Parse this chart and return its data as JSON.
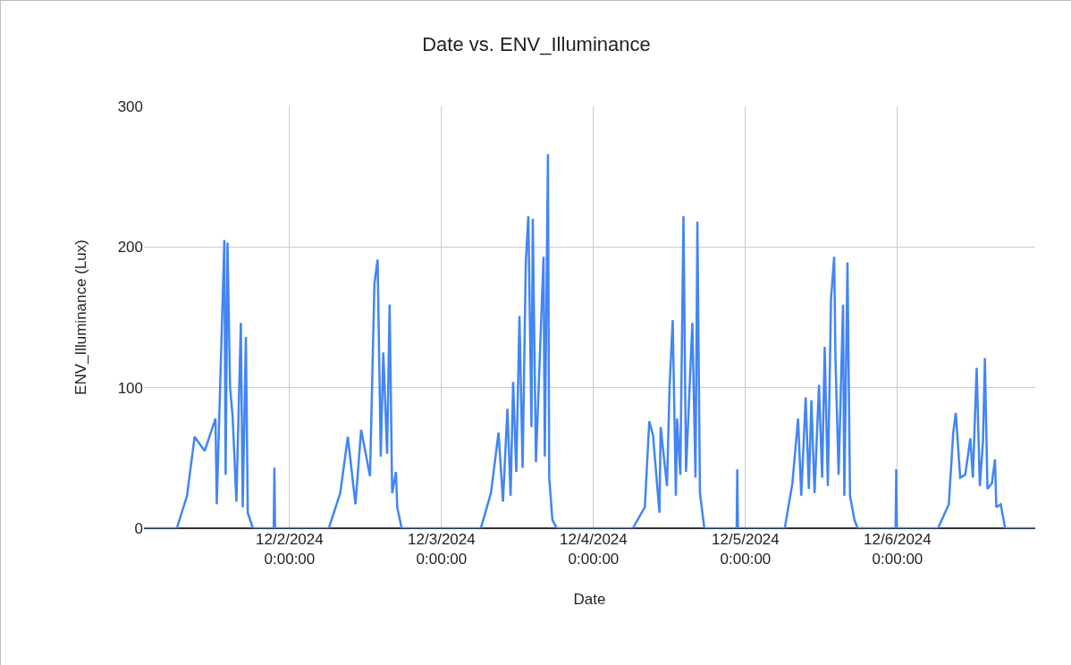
{
  "chart_data": {
    "type": "line",
    "title": "Date vs. ENV_Illuminance",
    "xlabel": "Date",
    "ylabel": "ENV_Illuminance (Lux)",
    "x": [
      "2024-12-01T01:00",
      "2024-12-01T06:12",
      "2024-12-01T07:48",
      "2024-12-01T09:00",
      "2024-12-01T10:36",
      "2024-12-01T12:18",
      "2024-12-01T12:30",
      "2024-12-01T13:42",
      "2024-12-01T13:54",
      "2024-12-01T14:12",
      "2024-12-01T14:36",
      "2024-12-01T15:00",
      "2024-12-01T15:36",
      "2024-12-01T16:18",
      "2024-12-01T16:36",
      "2024-12-01T17:06",
      "2024-12-01T17:24",
      "2024-12-01T18:12",
      "2024-12-01T21:30",
      "2024-12-01T21:36",
      "2024-12-01T21:42",
      "2024-12-02T06:12",
      "2024-12-02T08:00",
      "2024-12-02T09:12",
      "2024-12-02T10:24",
      "2024-12-02T11:18",
      "2024-12-02T12:42",
      "2024-12-02T13:24",
      "2024-12-02T13:54",
      "2024-12-02T14:24",
      "2024-12-02T14:48",
      "2024-12-02T15:24",
      "2024-12-02T15:48",
      "2024-12-02T16:12",
      "2024-12-02T16:48",
      "2024-12-02T17:00",
      "2024-12-02T17:42",
      "2024-12-03T06:12",
      "2024-12-03T07:48",
      "2024-12-03T09:00",
      "2024-12-03T09:42",
      "2024-12-03T10:24",
      "2024-12-03T10:54",
      "2024-12-03T11:18",
      "2024-12-03T11:48",
      "2024-12-03T12:18",
      "2024-12-03T12:48",
      "2024-12-03T13:18",
      "2024-12-03T13:42",
      "2024-12-03T14:12",
      "2024-12-03T14:24",
      "2024-12-03T14:54",
      "2024-12-03T16:06",
      "2024-12-03T16:18",
      "2024-12-03T16:48",
      "2024-12-03T17:00",
      "2024-12-03T17:30",
      "2024-12-03T18:12",
      "2024-12-04T06:12",
      "2024-12-04T08:06",
      "2024-12-04T08:48",
      "2024-12-04T09:24",
      "2024-12-04T10:24",
      "2024-12-04T10:36",
      "2024-12-04T11:36",
      "2024-12-04T12:00",
      "2024-12-04T12:30",
      "2024-12-04T13:00",
      "2024-12-04T13:12",
      "2024-12-04T13:42",
      "2024-12-04T14:12",
      "2024-12-04T14:36",
      "2024-12-04T15:36",
      "2024-12-04T16:06",
      "2024-12-04T16:24",
      "2024-12-04T16:48",
      "2024-12-04T17:30",
      "2024-12-04T22:36",
      "2024-12-04T22:42",
      "2024-12-04T22:48",
      "2024-12-05T06:12",
      "2024-12-05T07:24",
      "2024-12-05T08:18",
      "2024-12-05T08:48",
      "2024-12-05T09:30",
      "2024-12-05T10:00",
      "2024-12-05T10:24",
      "2024-12-05T10:54",
      "2024-12-05T11:36",
      "2024-12-05T12:06",
      "2024-12-05T12:30",
      "2024-12-05T13:00",
      "2024-12-05T13:30",
      "2024-12-05T14:00",
      "2024-12-05T14:12",
      "2024-12-05T14:42",
      "2024-12-05T15:24",
      "2024-12-05T15:36",
      "2024-12-05T16:06",
      "2024-12-05T16:30",
      "2024-12-05T17:12",
      "2024-12-05T17:42",
      "2024-12-05T23:42",
      "2024-12-05T23:48",
      "2024-12-05T23:54",
      "2024-12-06T06:24",
      "2024-12-06T08:06",
      "2024-12-06T08:48",
      "2024-12-06T09:12",
      "2024-12-06T09:54",
      "2024-12-06T10:42",
      "2024-12-06T11:30",
      "2024-12-06T11:54",
      "2024-12-06T12:30",
      "2024-12-06T13:00",
      "2024-12-06T13:30",
      "2024-12-06T13:48",
      "2024-12-06T14:12",
      "2024-12-06T14:54",
      "2024-12-06T15:24",
      "2024-12-06T15:36",
      "2024-12-06T16:18",
      "2024-12-06T17:00",
      "2024-12-06T21:45"
    ],
    "series": [
      {
        "color": "#4285f4",
        "values": [
          0,
          0,
          23,
          65,
          55,
          78,
          17,
          205,
          38,
          203,
          100,
          80,
          19,
          146,
          15,
          136,
          11,
          0,
          0,
          43,
          0,
          0,
          25,
          65,
          17,
          70,
          37,
          174,
          191,
          51,
          125,
          53,
          159,
          25,
          40,
          15,
          0,
          0,
          25,
          68,
          19,
          85,
          23,
          104,
          40,
          151,
          43,
          189,
          222,
          72,
          220,
          47,
          193,
          51,
          266,
          36,
          6,
          0,
          0,
          15,
          76,
          66,
          11,
          72,
          30,
          100,
          148,
          23,
          78,
          38,
          222,
          40,
          146,
          36,
          218,
          25,
          0,
          0,
          42,
          0,
          0,
          32,
          78,
          23,
          93,
          28,
          91,
          25,
          102,
          36,
          129,
          30,
          163,
          193,
          121,
          38,
          159,
          23,
          189,
          23,
          6,
          0,
          0,
          42,
          0,
          0,
          17,
          68,
          82,
          36,
          38,
          64,
          36,
          114,
          30,
          62,
          121,
          28,
          32,
          49,
          15,
          17,
          0,
          0
        ]
      }
    ],
    "xlim": [
      "2024-12-01T01:00",
      "2024-12-06T21:45"
    ],
    "xticks": [
      {
        "value": "2024-12-02",
        "label": "12/2/2024\n0:00:00"
      },
      {
        "value": "2024-12-03",
        "label": "12/3/2024\n0:00:00"
      },
      {
        "value": "2024-12-04",
        "label": "12/4/2024\n0:00:00"
      },
      {
        "value": "2024-12-05",
        "label": "12/5/2024\n0:00:00"
      },
      {
        "value": "2024-12-06",
        "label": "12/6/2024\n0:00:00"
      }
    ],
    "ylim": [
      0,
      300
    ],
    "yticks": [
      0,
      100,
      200,
      300
    ],
    "grid": true,
    "marker": "none",
    "line_style": "solid"
  }
}
